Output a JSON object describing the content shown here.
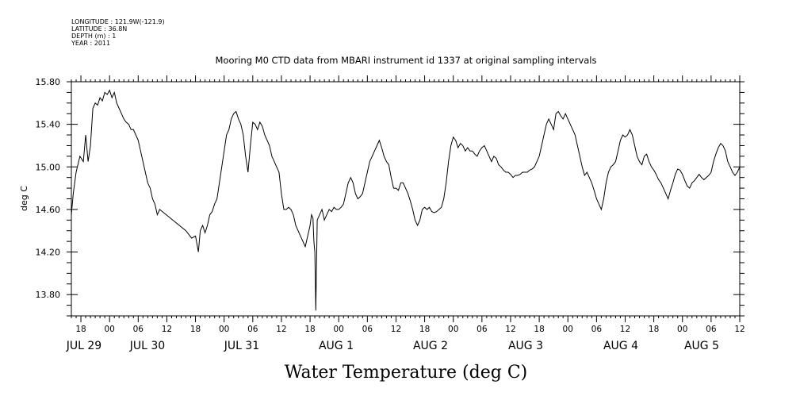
{
  "header": {
    "meta_lines": [
      "LONGITUDE : 121.9W(-121.9)",
      "LATITUDE : 36.8N",
      "DEPTH (m) : 1",
      "YEAR : 2011"
    ]
  },
  "chart_data": {
    "type": "line",
    "title": "Mooring M0 CTD data from MBARI instrument id 1337 at original sampling intervals",
    "xlabel": "Water Temperature (deg C)",
    "ylabel": "deg C",
    "ylim": [
      13.6,
      15.8
    ],
    "yticks": [
      13.8,
      14.2,
      14.6,
      15.0,
      15.4,
      15.8
    ],
    "ytick_labels": [
      "13.80",
      "14.20",
      "14.60",
      "15.00",
      "15.40",
      "15.80"
    ],
    "x_unit": "hours since 2011-07-29 00:00",
    "xlim": [
      -8,
      132
    ],
    "hour_tick_labels": [
      "18",
      "00",
      "06",
      "12",
      "18",
      "00",
      "06",
      "12",
      "18",
      "00",
      "06",
      "12",
      "18",
      "00",
      "06",
      "12",
      "18",
      "00",
      "06",
      "12",
      "18",
      "00",
      "06",
      "12",
      "18",
      "00",
      "06",
      "12"
    ],
    "date_labels": [
      {
        "label": "JUL 29",
        "hour": -6
      },
      {
        "label": "JUL 30",
        "hour": 24
      },
      {
        "label": "JUL 31",
        "hour": 48
      },
      {
        "label": "AUG  1",
        "hour": 72
      },
      {
        "label": "AUG  2",
        "hour": 96
      },
      {
        "label": "AUG  3",
        "hour": 120
      },
      {
        "label": "AUG  4",
        "hour": 144
      },
      {
        "label": "AUG  5",
        "hour": 164
      }
    ],
    "grid": false,
    "series": [
      {
        "points": [
          [
            -8,
            14.55
          ],
          [
            -7.6,
            14.75
          ],
          [
            -7,
            14.95
          ],
          [
            -6.2,
            15.1
          ],
          [
            -5.5,
            15.05
          ],
          [
            -5,
            15.3
          ],
          [
            -4.5,
            15.05
          ],
          [
            -4,
            15.2
          ],
          [
            -3.5,
            15.55
          ],
          [
            -3,
            15.6
          ],
          [
            -2.5,
            15.58
          ],
          [
            -2,
            15.65
          ],
          [
            -1.5,
            15.62
          ],
          [
            -1,
            15.7
          ],
          [
            -0.5,
            15.68
          ],
          [
            0,
            15.72
          ],
          [
            0.5,
            15.65
          ],
          [
            1,
            15.7
          ],
          [
            1.5,
            15.6
          ],
          [
            2,
            15.55
          ],
          [
            2.5,
            15.5
          ],
          [
            3,
            15.45
          ],
          [
            3.5,
            15.42
          ],
          [
            4,
            15.4
          ],
          [
            4.5,
            15.35
          ],
          [
            5,
            15.35
          ],
          [
            5.5,
            15.3
          ],
          [
            6,
            15.25
          ],
          [
            6.5,
            15.15
          ],
          [
            7,
            15.05
          ],
          [
            7.5,
            14.95
          ],
          [
            8,
            14.85
          ],
          [
            8.5,
            14.8
          ],
          [
            9,
            14.7
          ],
          [
            9.5,
            14.65
          ],
          [
            10,
            14.55
          ],
          [
            10.5,
            14.6
          ],
          [
            16,
            14.4
          ],
          [
            17.2,
            14.33
          ],
          [
            18,
            14.35
          ],
          [
            18.6,
            14.2
          ],
          [
            19,
            14.4
          ],
          [
            19.5,
            14.45
          ],
          [
            20,
            14.38
          ],
          [
            20.5,
            14.45
          ],
          [
            21,
            14.55
          ],
          [
            21.5,
            14.58
          ],
          [
            22,
            14.65
          ],
          [
            22.5,
            14.7
          ],
          [
            23,
            14.85
          ],
          [
            23.5,
            15.0
          ],
          [
            24,
            15.15
          ],
          [
            24.5,
            15.3
          ],
          [
            25,
            15.35
          ],
          [
            25.5,
            15.45
          ],
          [
            26,
            15.5
          ],
          [
            26.5,
            15.52
          ],
          [
            27,
            15.45
          ],
          [
            27.5,
            15.4
          ],
          [
            28,
            15.3
          ],
          [
            28.5,
            15.1
          ],
          [
            29,
            14.95
          ],
          [
            29.5,
            15.2
          ],
          [
            30,
            15.42
          ],
          [
            30.5,
            15.4
          ],
          [
            31,
            15.35
          ],
          [
            31.5,
            15.42
          ],
          [
            32,
            15.38
          ],
          [
            32.5,
            15.3
          ],
          [
            33,
            15.25
          ],
          [
            33.5,
            15.2
          ],
          [
            34,
            15.1
          ],
          [
            34.5,
            15.05
          ],
          [
            35,
            15.0
          ],
          [
            35.5,
            14.95
          ],
          [
            36,
            14.75
          ],
          [
            36.5,
            14.6
          ],
          [
            37,
            14.6
          ],
          [
            37.5,
            14.62
          ],
          [
            38,
            14.6
          ],
          [
            38.5,
            14.55
          ],
          [
            39,
            14.45
          ],
          [
            39.5,
            14.4
          ],
          [
            40,
            14.35
          ],
          [
            40.5,
            14.3
          ],
          [
            41,
            14.25
          ],
          [
            41.5,
            14.35
          ],
          [
            42,
            14.45
          ],
          [
            42.3,
            14.55
          ],
          [
            42.6,
            14.52
          ],
          [
            42.8,
            14.3
          ],
          [
            43,
            14.2
          ],
          [
            43.2,
            13.65
          ],
          [
            43.5,
            14.5
          ],
          [
            44,
            14.55
          ],
          [
            44.5,
            14.6
          ],
          [
            45,
            14.5
          ],
          [
            45.5,
            14.55
          ],
          [
            46,
            14.6
          ],
          [
            46.5,
            14.58
          ],
          [
            47,
            14.62
          ],
          [
            47.5,
            14.6
          ],
          [
            48,
            14.6
          ],
          [
            48.5,
            14.62
          ],
          [
            49,
            14.65
          ],
          [
            49.5,
            14.75
          ],
          [
            50,
            14.85
          ],
          [
            50.5,
            14.9
          ],
          [
            51,
            14.85
          ],
          [
            51.5,
            14.75
          ],
          [
            52,
            14.7
          ],
          [
            52.5,
            14.72
          ],
          [
            53,
            14.75
          ],
          [
            53.5,
            14.85
          ],
          [
            54,
            14.95
          ],
          [
            54.5,
            15.05
          ],
          [
            55,
            15.1
          ],
          [
            55.5,
            15.15
          ],
          [
            56,
            15.2
          ],
          [
            56.5,
            15.25
          ],
          [
            57,
            15.18
          ],
          [
            57.5,
            15.1
          ],
          [
            58,
            15.05
          ],
          [
            58.5,
            15.02
          ],
          [
            59,
            14.9
          ],
          [
            59.5,
            14.8
          ],
          [
            60,
            14.8
          ],
          [
            60.5,
            14.78
          ],
          [
            61,
            14.85
          ],
          [
            61.5,
            14.85
          ],
          [
            62,
            14.8
          ],
          [
            62.5,
            14.75
          ],
          [
            63,
            14.68
          ],
          [
            63.5,
            14.6
          ],
          [
            64,
            14.5
          ],
          [
            64.5,
            14.45
          ],
          [
            65,
            14.5
          ],
          [
            65.5,
            14.6
          ],
          [
            66,
            14.62
          ],
          [
            66.5,
            14.6
          ],
          [
            67,
            14.62
          ],
          [
            67.5,
            14.58
          ],
          [
            68,
            14.57
          ],
          [
            68.5,
            14.58
          ],
          [
            69,
            14.6
          ],
          [
            69.5,
            14.62
          ],
          [
            70,
            14.7
          ],
          [
            70.5,
            14.85
          ],
          [
            71,
            15.05
          ],
          [
            71.5,
            15.2
          ],
          [
            72,
            15.28
          ],
          [
            72.5,
            15.25
          ],
          [
            73,
            15.18
          ],
          [
            73.5,
            15.22
          ],
          [
            74,
            15.2
          ],
          [
            74.5,
            15.15
          ],
          [
            75,
            15.18
          ],
          [
            75.5,
            15.15
          ],
          [
            76,
            15.15
          ],
          [
            76.5,
            15.12
          ],
          [
            77,
            15.1
          ],
          [
            77.5,
            15.15
          ],
          [
            78,
            15.18
          ],
          [
            78.5,
            15.2
          ],
          [
            79,
            15.15
          ],
          [
            79.5,
            15.1
          ],
          [
            80,
            15.05
          ],
          [
            80.5,
            15.1
          ],
          [
            81,
            15.08
          ],
          [
            81.5,
            15.02
          ],
          [
            82,
            15.0
          ],
          [
            82.5,
            14.97
          ],
          [
            83,
            14.95
          ],
          [
            83.5,
            14.95
          ],
          [
            84,
            14.93
          ],
          [
            84.5,
            14.9
          ],
          [
            85,
            14.92
          ],
          [
            85.5,
            14.92
          ],
          [
            86,
            14.93
          ],
          [
            86.5,
            14.95
          ],
          [
            87,
            14.95
          ],
          [
            87.5,
            14.95
          ],
          [
            88,
            14.97
          ],
          [
            88.5,
            14.98
          ],
          [
            89,
            15.0
          ],
          [
            89.5,
            15.05
          ],
          [
            90,
            15.1
          ],
          [
            90.5,
            15.2
          ],
          [
            91,
            15.3
          ],
          [
            91.5,
            15.4
          ],
          [
            92,
            15.45
          ],
          [
            92.5,
            15.4
          ],
          [
            93,
            15.35
          ],
          [
            93.5,
            15.5
          ],
          [
            94,
            15.52
          ],
          [
            94.5,
            15.48
          ],
          [
            95,
            15.45
          ],
          [
            95.5,
            15.5
          ],
          [
            96,
            15.45
          ],
          [
            96.5,
            15.4
          ],
          [
            97,
            15.35
          ],
          [
            97.5,
            15.3
          ],
          [
            98,
            15.2
          ],
          [
            98.5,
            15.1
          ],
          [
            99,
            15.0
          ],
          [
            99.5,
            14.92
          ],
          [
            100,
            14.95
          ],
          [
            100.5,
            14.9
          ],
          [
            101,
            14.85
          ],
          [
            101.5,
            14.78
          ],
          [
            102,
            14.7
          ],
          [
            102.5,
            14.65
          ],
          [
            103,
            14.6
          ],
          [
            103.5,
            14.7
          ],
          [
            104,
            14.85
          ],
          [
            104.5,
            14.95
          ],
          [
            105,
            15.0
          ],
          [
            105.5,
            15.02
          ],
          [
            106,
            15.05
          ],
          [
            106.5,
            15.15
          ],
          [
            107,
            15.25
          ],
          [
            107.5,
            15.3
          ],
          [
            108,
            15.28
          ],
          [
            108.5,
            15.3
          ],
          [
            109,
            15.35
          ],
          [
            109.5,
            15.3
          ],
          [
            110,
            15.2
          ],
          [
            110.5,
            15.1
          ],
          [
            111,
            15.05
          ],
          [
            111.5,
            15.02
          ],
          [
            112,
            15.1
          ],
          [
            112.5,
            15.12
          ],
          [
            113,
            15.05
          ],
          [
            113.5,
            15.0
          ],
          [
            114,
            14.97
          ],
          [
            114.5,
            14.93
          ],
          [
            115,
            14.88
          ],
          [
            115.5,
            14.85
          ],
          [
            116,
            14.8
          ],
          [
            116.5,
            14.75
          ],
          [
            117,
            14.7
          ],
          [
            117.5,
            14.78
          ],
          [
            118,
            14.85
          ],
          [
            118.5,
            14.93
          ],
          [
            119,
            14.98
          ],
          [
            119.5,
            14.97
          ],
          [
            120,
            14.93
          ],
          [
            120.5,
            14.87
          ],
          [
            121,
            14.82
          ],
          [
            121.5,
            14.8
          ],
          [
            122,
            14.85
          ],
          [
            122.5,
            14.87
          ],
          [
            123,
            14.9
          ],
          [
            123.5,
            14.93
          ],
          [
            124,
            14.9
          ],
          [
            124.5,
            14.88
          ],
          [
            125,
            14.9
          ],
          [
            125.5,
            14.92
          ],
          [
            126,
            14.95
          ],
          [
            126.5,
            15.05
          ],
          [
            127,
            15.12
          ],
          [
            127.5,
            15.18
          ],
          [
            128,
            15.22
          ],
          [
            128.5,
            15.2
          ],
          [
            129,
            15.15
          ],
          [
            129.5,
            15.05
          ],
          [
            130,
            15.0
          ],
          [
            130.5,
            14.95
          ],
          [
            131,
            14.92
          ],
          [
            131.5,
            14.95
          ],
          [
            132,
            15.0
          ]
        ]
      }
    ]
  }
}
